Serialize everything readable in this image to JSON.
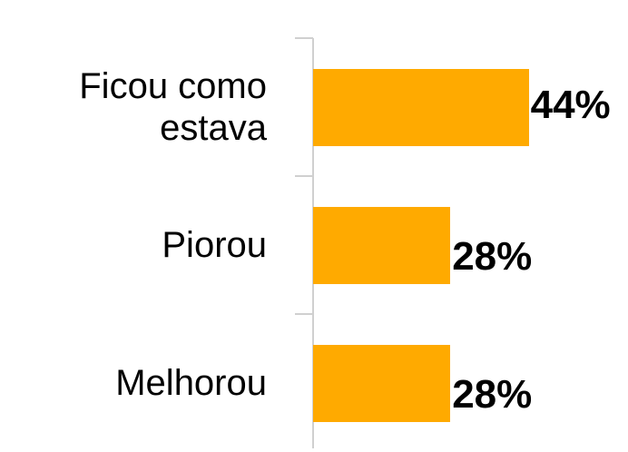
{
  "chart_data": {
    "type": "hbar",
    "categories": [
      "Ficou como estava",
      "Piorou",
      "Melhorou"
    ],
    "values": [
      44,
      28,
      28
    ],
    "value_labels": [
      "44%",
      "28%",
      "28%"
    ],
    "color": "#ffaa00"
  }
}
